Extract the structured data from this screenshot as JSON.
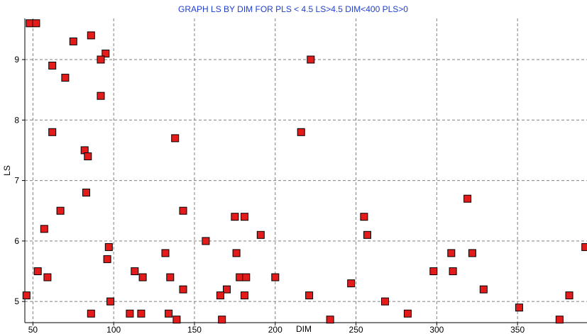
{
  "chart_data": {
    "type": "scatter",
    "title": "GRAPH LS BY DIM FOR PLS < 4.5 LS>4.5 DIM<400 PLS>0",
    "xlabel": "DIM",
    "ylabel": "LS",
    "xlim": [
      45,
      393
    ],
    "ylim": [
      4.65,
      9.68
    ],
    "xticks": [
      50,
      100,
      150,
      200,
      250,
      300,
      350
    ],
    "yticks": [
      5,
      6,
      7,
      8,
      9
    ],
    "grid": true,
    "title_color": "#1f3fd0",
    "marker_color": "#e41b1b",
    "marker_edge": "#000000",
    "points": [
      [
        48,
        9.6
      ],
      [
        52,
        9.6
      ],
      [
        75,
        9.3
      ],
      [
        86,
        9.4
      ],
      [
        95,
        9.1
      ],
      [
        92,
        9.0
      ],
      [
        62,
        8.9
      ],
      [
        70,
        8.7
      ],
      [
        92,
        8.4
      ],
      [
        62,
        7.8
      ],
      [
        82,
        7.5
      ],
      [
        84,
        7.4
      ],
      [
        83,
        6.8
      ],
      [
        67,
        6.5
      ],
      [
        57,
        6.2
      ],
      [
        97,
        5.9
      ],
      [
        96,
        5.7
      ],
      [
        53,
        5.5
      ],
      [
        59,
        5.4
      ],
      [
        46,
        5.1
      ],
      [
        98,
        5.0
      ],
      [
        86,
        4.8
      ],
      [
        222,
        9.0
      ],
      [
        138,
        7.7
      ],
      [
        216,
        7.8
      ],
      [
        143,
        6.5
      ],
      [
        175,
        6.4
      ],
      [
        181,
        6.4
      ],
      [
        157,
        6.0
      ],
      [
        191,
        6.1
      ],
      [
        132,
        5.8
      ],
      [
        176,
        5.8
      ],
      [
        113,
        5.5
      ],
      [
        118,
        5.4
      ],
      [
        135,
        5.4
      ],
      [
        178,
        5.4
      ],
      [
        182,
        5.4
      ],
      [
        200,
        5.4
      ],
      [
        143,
        5.2
      ],
      [
        170,
        5.2
      ],
      [
        166,
        5.1
      ],
      [
        181,
        5.1
      ],
      [
        221,
        5.1
      ],
      [
        110,
        4.8
      ],
      [
        117,
        4.8
      ],
      [
        134,
        4.8
      ],
      [
        139,
        4.7
      ],
      [
        167,
        4.7
      ],
      [
        234,
        4.7
      ],
      [
        255,
        6.4
      ],
      [
        257,
        6.1
      ],
      [
        319,
        6.7
      ],
      [
        309,
        5.8
      ],
      [
        322,
        5.8
      ],
      [
        298,
        5.5
      ],
      [
        310,
        5.5
      ],
      [
        247,
        5.3
      ],
      [
        329,
        5.2
      ],
      [
        268,
        5.0
      ],
      [
        282,
        4.8
      ],
      [
        351,
        4.9
      ],
      [
        376,
        4.7
      ],
      [
        382,
        5.1
      ],
      [
        392,
        5.9
      ]
    ]
  }
}
